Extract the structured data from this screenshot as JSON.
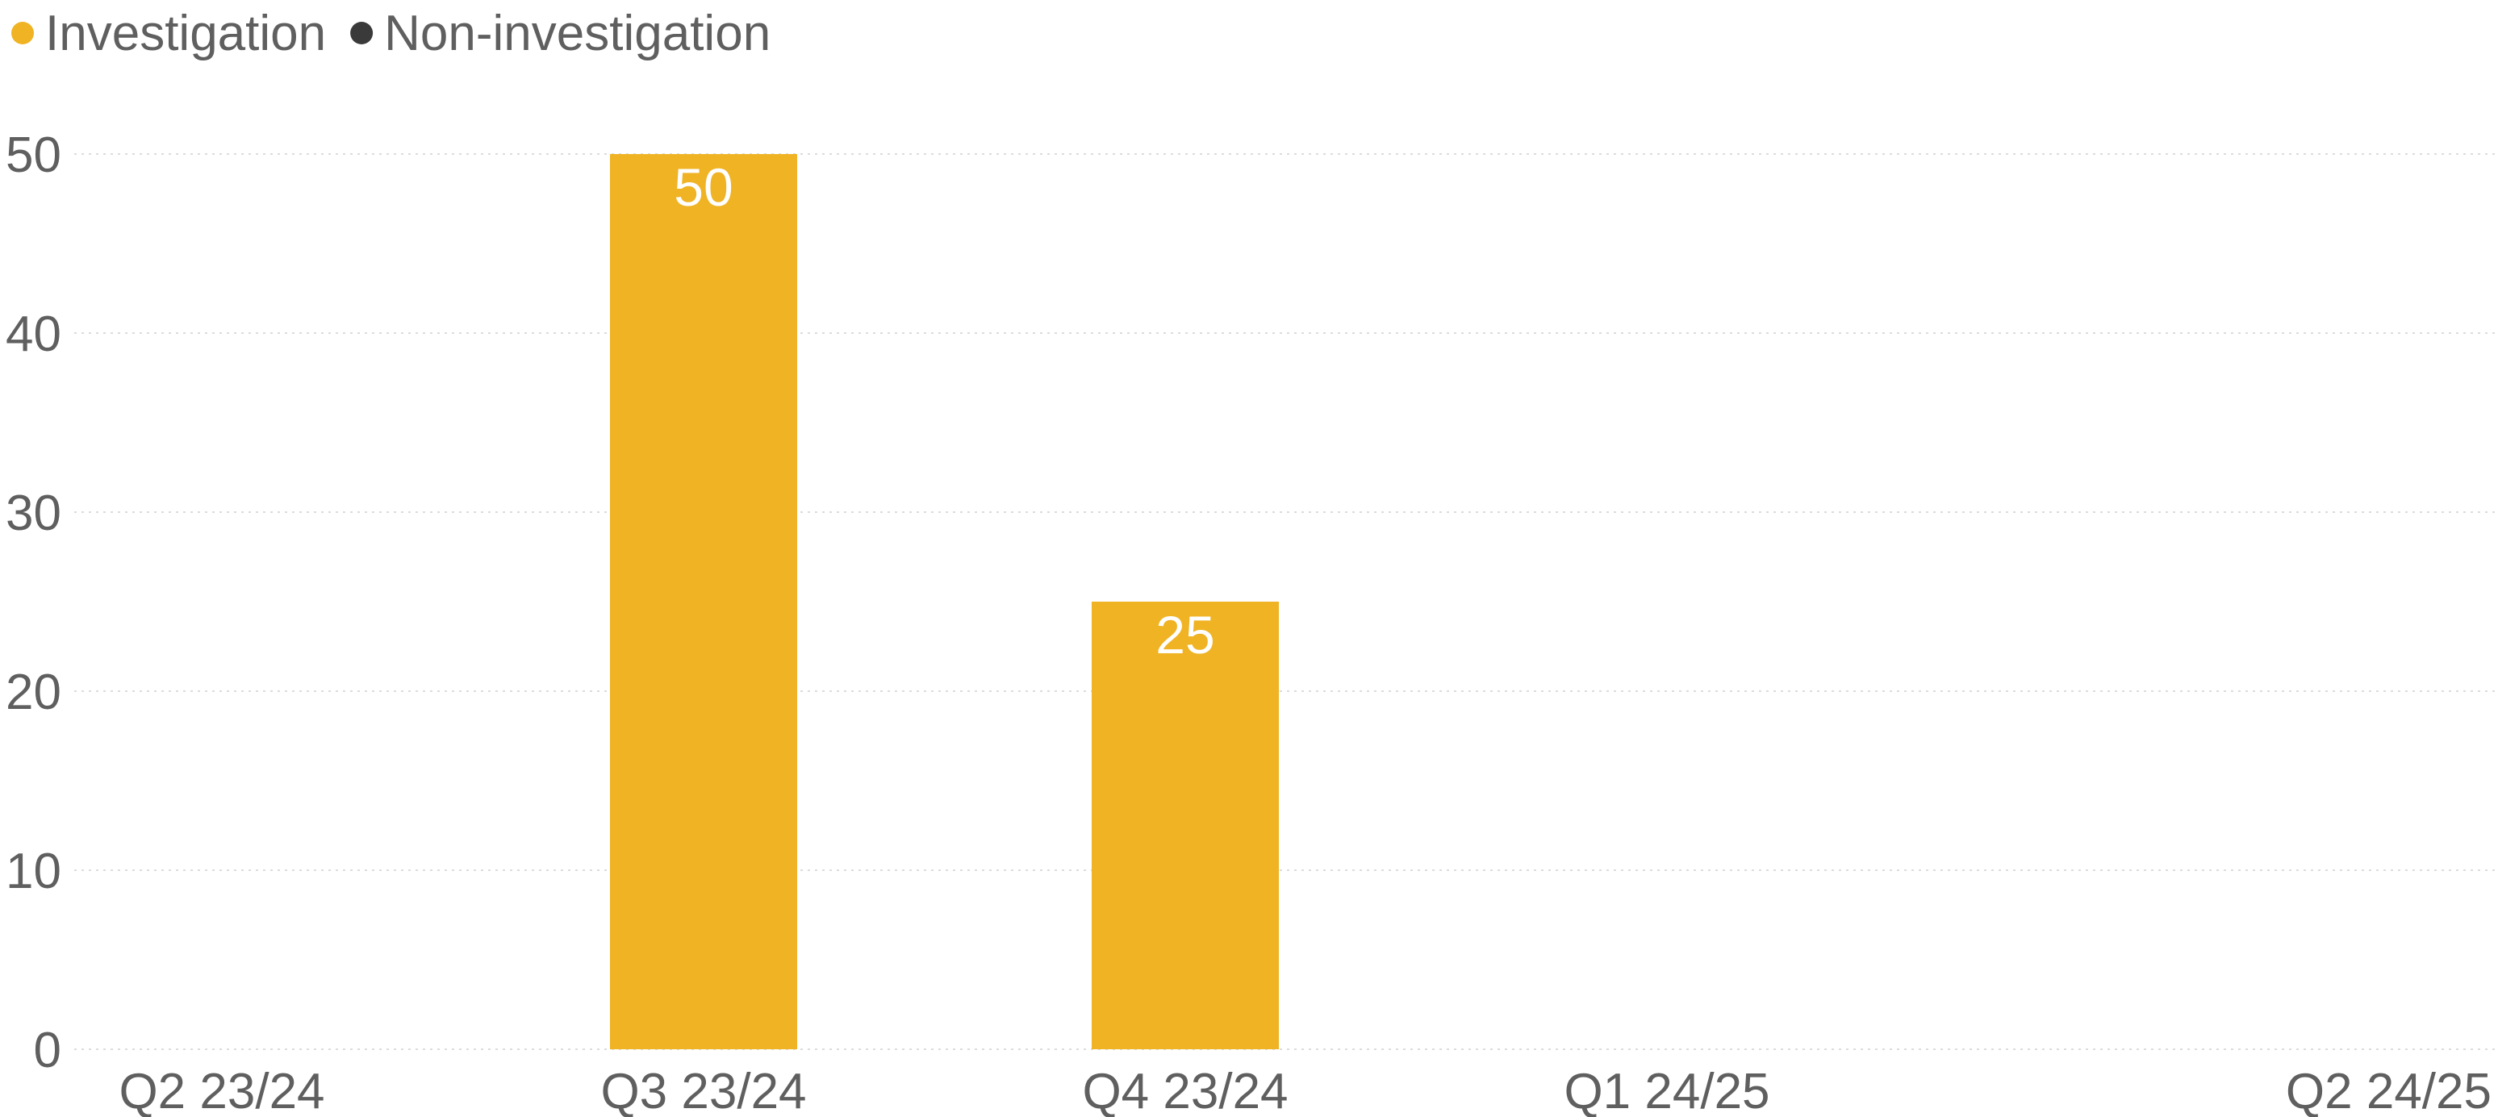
{
  "chart_data": {
    "type": "bar",
    "categories": [
      "Q2 23/24",
      "Q3 23/24",
      "Q4 23/24",
      "Q1 24/25",
      "Q2 24/25"
    ],
    "series": [
      {
        "name": "Investigation",
        "color": "#EFB324",
        "values": [
          0,
          50,
          25,
          0,
          0
        ]
      },
      {
        "name": "Non-investigation",
        "color": "#3A3A3A",
        "values": [
          0,
          0,
          0,
          0,
          0
        ]
      }
    ],
    "stacked": true,
    "ylim": [
      0,
      50
    ],
    "yticks": [
      0,
      10,
      20,
      30,
      40,
      50
    ],
    "ytick_labels": [
      "0",
      "10",
      "20",
      "30",
      "40",
      "50"
    ],
    "data_labels": [
      "",
      "50",
      "25",
      "",
      ""
    ],
    "title": "",
    "xlabel": "",
    "ylabel": "",
    "grid": true,
    "legend": "top-left"
  }
}
